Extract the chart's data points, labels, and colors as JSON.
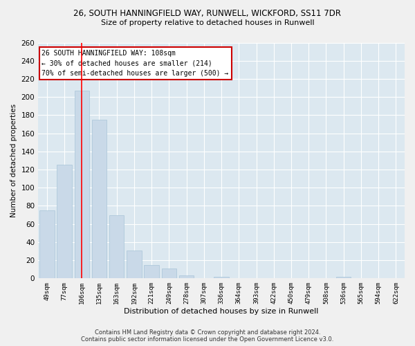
{
  "title_line1": "26, SOUTH HANNINGFIELD WAY, RUNWELL, WICKFORD, SS11 7DR",
  "title_line2": "Size of property relative to detached houses in Runwell",
  "xlabel": "Distribution of detached houses by size in Runwell",
  "ylabel": "Number of detached properties",
  "categories": [
    "49sqm",
    "77sqm",
    "106sqm",
    "135sqm",
    "163sqm",
    "192sqm",
    "221sqm",
    "249sqm",
    "278sqm",
    "307sqm",
    "336sqm",
    "364sqm",
    "393sqm",
    "422sqm",
    "450sqm",
    "479sqm",
    "508sqm",
    "536sqm",
    "565sqm",
    "594sqm",
    "622sqm"
  ],
  "values": [
    75,
    125,
    207,
    175,
    70,
    31,
    15,
    11,
    3,
    0,
    2,
    0,
    0,
    0,
    0,
    0,
    0,
    2,
    0,
    0,
    0
  ],
  "bar_color": "#c9d9e8",
  "bar_edge_color": "#a8c4d8",
  "red_line_index": 2,
  "ylim": [
    0,
    260
  ],
  "yticks": [
    0,
    20,
    40,
    60,
    80,
    100,
    120,
    140,
    160,
    180,
    200,
    220,
    240,
    260
  ],
  "annotation_line1": "26 SOUTH HANNINGFIELD WAY: 108sqm",
  "annotation_line2": "← 30% of detached houses are smaller (214)",
  "annotation_line3": "70% of semi-detached houses are larger (500) →",
  "annotation_box_color": "#ffffff",
  "annotation_box_edge": "#cc0000",
  "background_color": "#dce8f0",
  "grid_color": "#ffffff",
  "footer_line1": "Contains HM Land Registry data © Crown copyright and database right 2024.",
  "footer_line2": "Contains public sector information licensed under the Open Government Licence v3.0."
}
